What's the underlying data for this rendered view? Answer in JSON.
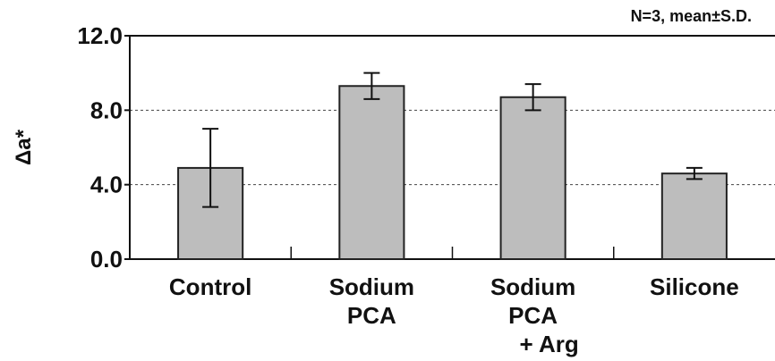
{
  "chart_data": {
    "type": "bar",
    "annotation": "N=3, mean±S.D.",
    "ylabel": "Δa*",
    "categories": [
      [
        "Control"
      ],
      [
        "Sodium",
        "PCA"
      ],
      [
        "Sodium",
        "PCA",
        "+ Arg"
      ],
      [
        "Silicone"
      ]
    ],
    "values": [
      4.9,
      9.3,
      8.7,
      4.6
    ],
    "errors": [
      2.1,
      0.7,
      0.7,
      0.3
    ],
    "color": "#bdbdbd",
    "ylim": [
      0,
      12
    ],
    "yticks": [
      {
        "value": 0,
        "label": "0.0"
      },
      {
        "value": 4,
        "label": "4.0"
      },
      {
        "value": 8,
        "label": "8.0"
      },
      {
        "value": 12,
        "label": "12.0"
      }
    ],
    "grid": true
  }
}
